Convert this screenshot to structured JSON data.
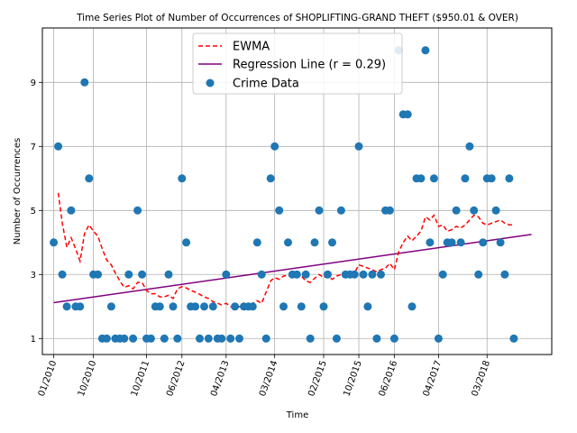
{
  "chart_data": {
    "type": "scatter",
    "title": "Time Series Plot of Number of Occurrences of SHOPLIFTING-GRAND THEFT ($950.01 & OVER)",
    "xlabel": "Time",
    "ylabel": "Number of Occurrences",
    "ylim": [
      0.5,
      10.7
    ],
    "xlim": [
      "2009-10-15",
      "2019-05-20"
    ],
    "yticks": [
      1,
      3,
      5,
      7,
      9
    ],
    "xticks": [
      {
        "date": "2010-01-01",
        "label": "01/2010"
      },
      {
        "date": "2010-10-01",
        "label": "10/2010"
      },
      {
        "date": "2011-10-01",
        "label": "10/2011"
      },
      {
        "date": "2012-06-01",
        "label": "06/2012"
      },
      {
        "date": "2013-04-01",
        "label": "04/2013"
      },
      {
        "date": "2014-03-01",
        "label": "03/2014"
      },
      {
        "date": "2015-02-01",
        "label": "02/2015"
      },
      {
        "date": "2015-10-01",
        "label": "10/2015"
      },
      {
        "date": "2016-06-01",
        "label": "06/2016"
      },
      {
        "date": "2017-04-01",
        "label": "04/2017"
      },
      {
        "date": "2018-03-01",
        "label": "03/2018"
      }
    ],
    "grid": true,
    "legend_position": "top-center",
    "legend": [
      {
        "label": "EWMA",
        "style": "dashed-line",
        "color": "#ff0000"
      },
      {
        "label": "Regression Line (r = 0.29)",
        "style": "line",
        "color": "#800080"
      },
      {
        "label": "Crime Data",
        "style": "marker",
        "color": "#1f77b4"
      }
    ],
    "series": [
      {
        "name": "Crime Data",
        "kind": "scatter",
        "color": "#1f77b4",
        "x": [
          "2010-01-01",
          "2010-02-01",
          "2010-03-01",
          "2010-04-01",
          "2010-05-01",
          "2010-06-01",
          "2010-07-01",
          "2010-08-01",
          "2010-09-01",
          "2010-10-01",
          "2010-11-01",
          "2010-12-01",
          "2011-01-01",
          "2011-02-01",
          "2011-03-01",
          "2011-04-01",
          "2011-05-01",
          "2011-06-01",
          "2011-07-01",
          "2011-08-01",
          "2011-09-01",
          "2011-10-01",
          "2011-11-01",
          "2011-12-01",
          "2012-01-01",
          "2012-02-01",
          "2012-03-01",
          "2012-04-01",
          "2012-05-01",
          "2012-06-01",
          "2012-07-01",
          "2012-08-01",
          "2012-09-01",
          "2012-10-01",
          "2012-11-01",
          "2012-12-01",
          "2013-01-01",
          "2013-02-01",
          "2013-03-01",
          "2013-04-01",
          "2013-05-01",
          "2013-06-01",
          "2013-07-01",
          "2013-08-01",
          "2013-09-01",
          "2013-10-01",
          "2013-11-01",
          "2013-12-01",
          "2014-01-01",
          "2014-02-01",
          "2014-03-01",
          "2014-04-01",
          "2014-05-01",
          "2014-06-01",
          "2014-07-01",
          "2014-08-01",
          "2014-09-01",
          "2014-10-01",
          "2014-11-01",
          "2014-12-01",
          "2015-01-01",
          "2015-02-01",
          "2015-03-01",
          "2015-04-01",
          "2015-05-01",
          "2015-06-01",
          "2015-07-01",
          "2015-08-01",
          "2015-09-01",
          "2015-10-01",
          "2015-11-01",
          "2015-12-01",
          "2016-01-01",
          "2016-02-01",
          "2016-03-01",
          "2016-04-01",
          "2016-05-01",
          "2016-06-01",
          "2016-07-01",
          "2016-08-01",
          "2016-09-01",
          "2016-10-01",
          "2016-11-01",
          "2016-12-01",
          "2017-01-01",
          "2017-02-01",
          "2017-03-01",
          "2017-04-01",
          "2017-05-01",
          "2017-06-01",
          "2017-07-01",
          "2017-08-01",
          "2017-09-01",
          "2017-10-01",
          "2017-11-01",
          "2017-12-01",
          "2018-01-01",
          "2018-02-01",
          "2018-03-01",
          "2018-04-01",
          "2018-05-01",
          "2018-06-01",
          "2018-07-01",
          "2018-08-01",
          "2018-09-01"
        ],
        "y": [
          4,
          7,
          3,
          2,
          5,
          2,
          2,
          9,
          6,
          3,
          3,
          1,
          1,
          2,
          1,
          1,
          1,
          3,
          1,
          5,
          3,
          1,
          1,
          2,
          2,
          1,
          3,
          2,
          1,
          6,
          4,
          2,
          2,
          1,
          2,
          1,
          2,
          1,
          1,
          3,
          1,
          2,
          1,
          2,
          2,
          2,
          4,
          3,
          1,
          6,
          7,
          5,
          2,
          4,
          3,
          3,
          2,
          3,
          1,
          4,
          5,
          2,
          3,
          4,
          1,
          5,
          3,
          3,
          3,
          7,
          3,
          2,
          3,
          1,
          3,
          5,
          5,
          1,
          10,
          8,
          8,
          2,
          6,
          6,
          10,
          4,
          6,
          1,
          3,
          4,
          4,
          5,
          4,
          6,
          7,
          5,
          3,
          4,
          6,
          6,
          5,
          4,
          3,
          6,
          1
        ]
      },
      {
        "name": "EWMA",
        "kind": "line",
        "color": "#ff0000",
        "dash": true,
        "x": [
          "2010-02-01",
          "2010-03-01",
          "2010-04-01",
          "2010-05-01",
          "2010-06-01",
          "2010-07-01",
          "2010-08-01",
          "2010-09-01",
          "2010-10-01",
          "2010-11-01",
          "2010-12-01",
          "2011-01-01",
          "2011-02-01",
          "2011-03-01",
          "2011-04-01",
          "2011-05-01",
          "2011-06-01",
          "2011-07-01",
          "2011-08-01",
          "2011-09-01",
          "2011-10-01",
          "2011-11-01",
          "2011-12-01",
          "2012-01-01",
          "2012-02-01",
          "2012-03-01",
          "2012-04-01",
          "2012-05-01",
          "2012-06-01",
          "2012-07-01",
          "2012-08-01",
          "2012-09-01",
          "2012-10-01",
          "2012-11-01",
          "2012-12-01",
          "2013-01-01",
          "2013-02-01",
          "2013-03-01",
          "2013-04-01",
          "2013-05-01",
          "2013-06-01",
          "2013-07-01",
          "2013-08-01",
          "2013-09-01",
          "2013-10-01",
          "2013-11-01",
          "2013-12-01",
          "2014-01-01",
          "2014-02-01",
          "2014-03-01",
          "2014-04-01",
          "2014-05-01",
          "2014-06-01",
          "2014-07-01",
          "2014-08-01",
          "2014-09-01",
          "2014-10-01",
          "2014-11-01",
          "2014-12-01",
          "2015-01-01",
          "2015-02-01",
          "2015-03-01",
          "2015-04-01",
          "2015-05-01",
          "2015-06-01",
          "2015-07-01",
          "2015-08-01",
          "2015-09-01",
          "2015-10-01",
          "2015-11-01",
          "2015-12-01",
          "2016-01-01",
          "2016-02-01",
          "2016-03-01",
          "2016-04-01",
          "2016-05-01",
          "2016-06-01",
          "2016-07-01",
          "2016-08-01",
          "2016-09-01",
          "2016-10-01",
          "2016-11-01",
          "2016-12-01",
          "2017-01-01",
          "2017-02-01",
          "2017-03-01",
          "2017-04-01",
          "2017-05-01",
          "2017-06-01",
          "2017-07-01",
          "2017-08-01",
          "2017-09-01",
          "2017-10-01",
          "2017-11-01",
          "2017-12-01",
          "2018-01-01",
          "2018-02-01",
          "2018-03-01",
          "2018-04-01",
          "2018-05-01",
          "2018-06-01",
          "2018-07-01",
          "2018-08-01",
          "2018-09-01"
        ],
        "y": [
          5.55,
          4.6,
          3.85,
          4.15,
          3.8,
          3.42,
          4.28,
          4.55,
          4.35,
          4.2,
          3.8,
          3.45,
          3.3,
          3.05,
          2.8,
          2.6,
          2.65,
          2.55,
          2.75,
          2.75,
          2.5,
          2.4,
          2.4,
          2.3,
          2.3,
          2.35,
          2.25,
          2.55,
          2.62,
          2.58,
          2.5,
          2.45,
          2.38,
          2.3,
          2.25,
          2.15,
          2.1,
          2.05,
          2.1,
          2.0,
          1.95,
          2.0,
          1.95,
          2.0,
          2.1,
          2.18,
          2.1,
          2.45,
          2.8,
          2.9,
          2.85,
          2.95,
          2.98,
          2.9,
          2.95,
          2.95,
          2.8,
          2.75,
          2.88,
          3.0,
          2.9,
          2.95,
          2.85,
          2.95,
          3.0,
          2.95,
          2.95,
          3.05,
          3.3,
          3.25,
          3.2,
          3.15,
          3.08,
          3.15,
          3.2,
          3.35,
          3.15,
          3.7,
          4.0,
          4.2,
          4.05,
          4.2,
          4.35,
          4.8,
          4.7,
          4.85,
          4.5,
          4.55,
          4.35,
          4.4,
          4.5,
          4.45,
          4.55,
          4.7,
          4.85,
          4.8,
          4.6,
          4.55,
          4.6,
          4.65,
          4.7,
          4.6,
          4.55,
          4.55
        ]
      },
      {
        "name": "Regression Line (r = 0.29)",
        "kind": "line",
        "color": "#800080",
        "x": [
          "2010-01-01",
          "2019-01-01"
        ],
        "y": [
          2.12,
          4.25
        ]
      }
    ]
  }
}
